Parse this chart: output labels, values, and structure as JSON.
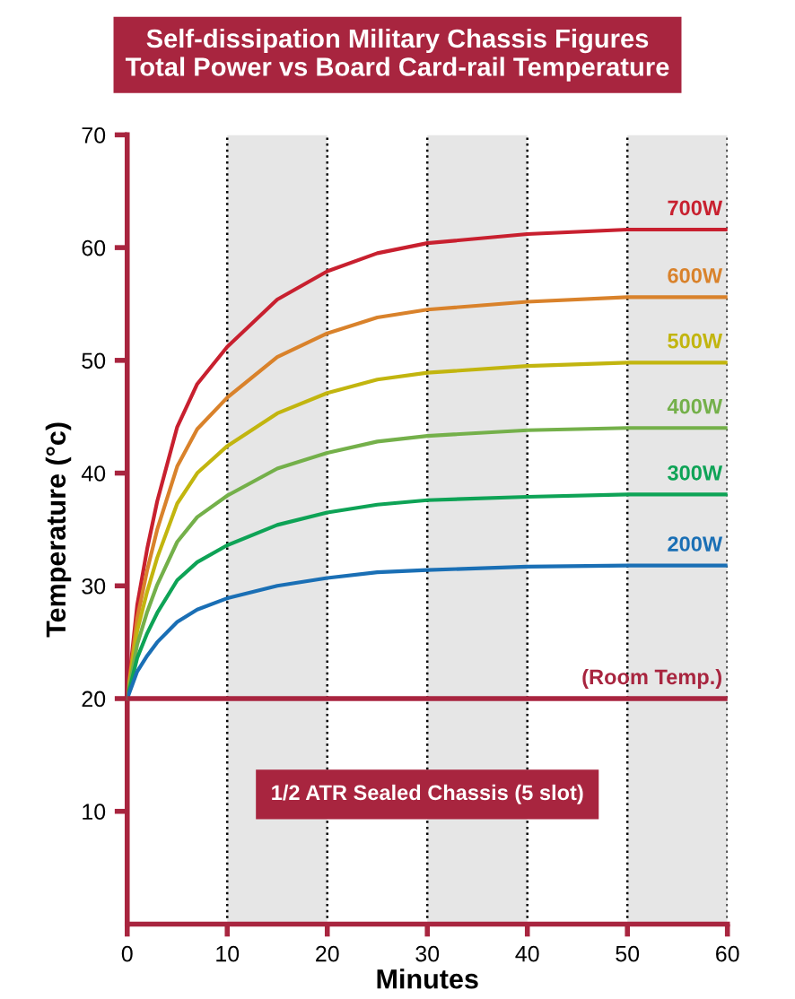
{
  "chart_data": {
    "type": "line",
    "title": "Self-dissipation Military Chassis Figures\nTotal Power vs Board Card-rail Temperature",
    "xlabel": "Minutes",
    "ylabel": "Temperature (°c)",
    "x": [
      0,
      1,
      2,
      3,
      5,
      7,
      10,
      15,
      20,
      25,
      30,
      40,
      50,
      60
    ],
    "series": [
      {
        "name": "700W",
        "color": "#c8202f",
        "values": [
          20,
          28.3,
          33.3,
          37.5,
          44.1,
          47.9,
          51.2,
          55.4,
          57.9,
          59.5,
          60.4,
          61.2,
          61.6,
          61.6
        ]
      },
      {
        "name": "600W",
        "color": "#d9822b",
        "values": [
          20,
          27.1,
          31.4,
          35.0,
          40.6,
          43.9,
          46.7,
          50.3,
          52.4,
          53.8,
          54.5,
          55.2,
          55.6,
          55.6
        ]
      },
      {
        "name": "500W",
        "color": "#c2b50f",
        "values": [
          20,
          26.0,
          29.5,
          32.5,
          37.3,
          40.0,
          42.4,
          45.3,
          47.1,
          48.3,
          48.9,
          49.5,
          49.8,
          49.8
        ]
      },
      {
        "name": "400W",
        "color": "#74b04a",
        "values": [
          20,
          24.8,
          27.7,
          30.1,
          33.9,
          36.1,
          38.0,
          40.4,
          41.8,
          42.8,
          43.3,
          43.8,
          44.0,
          44.0
        ]
      },
      {
        "name": "300W",
        "color": "#0ea356",
        "values": [
          20,
          23.6,
          25.8,
          27.6,
          30.5,
          32.1,
          33.6,
          35.4,
          36.5,
          37.2,
          37.6,
          37.9,
          38.1,
          38.1
        ]
      },
      {
        "name": "200W",
        "color": "#1a6fb5",
        "values": [
          20,
          22.4,
          23.8,
          25.0,
          26.8,
          27.9,
          28.9,
          30.0,
          30.7,
          31.2,
          31.4,
          31.7,
          31.8,
          31.8
        ]
      }
    ],
    "ref_lines": [
      {
        "axis": "y",
        "value": 20,
        "label": "(Room Temp.)",
        "color": "#a8253f"
      }
    ],
    "bands": [
      {
        "axis": "x",
        "from": 10,
        "to": 20,
        "color": "#e6e6e6"
      },
      {
        "axis": "x",
        "from": 30,
        "to": 40,
        "color": "#e6e6e6"
      },
      {
        "axis": "x",
        "from": 50,
        "to": 60,
        "color": "#e6e6e6"
      }
    ],
    "annotations": [
      {
        "text": "1/2 ATR Sealed Chassis (5 slot)",
        "x": 30,
        "y": 11.5
      }
    ],
    "xlim": [
      0,
      60
    ],
    "ylim": [
      0,
      70
    ],
    "xticks": [
      0,
      10,
      20,
      30,
      40,
      50,
      60
    ],
    "yticks": [
      10,
      20,
      30,
      40,
      50,
      60,
      70
    ],
    "grid": "x",
    "line_style": "solid"
  }
}
